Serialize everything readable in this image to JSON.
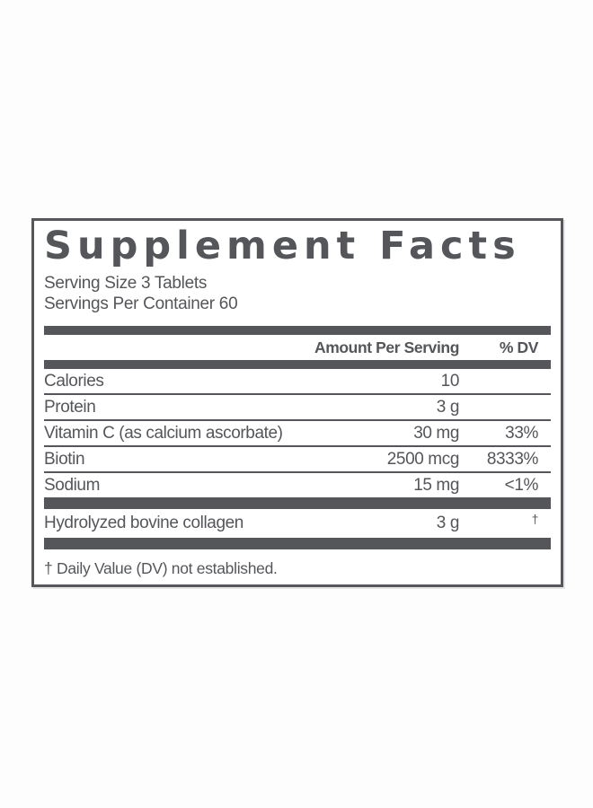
{
  "panel": {
    "title": "Supplement Facts",
    "serving_size": "Serving Size 3 Tablets",
    "servings_per_container": "Servings Per Container 60",
    "columns": {
      "amount": "Amount Per Serving",
      "dv": "% DV"
    },
    "rows": [
      {
        "name": "Calories",
        "amount": "10",
        "dv": ""
      },
      {
        "name": "Protein",
        "amount": "3 g",
        "dv": ""
      },
      {
        "name": "Vitamin C (as calcium ascorbate)",
        "amount": "30 mg",
        "dv": "33%"
      },
      {
        "name": "Biotin",
        "amount": "2500 mcg",
        "dv": "8333%"
      },
      {
        "name": "Sodium",
        "amount": "15 mg",
        "dv": "<1%"
      }
    ],
    "other_ingredient_row": {
      "name": "Hydrolyzed bovine collagen",
      "amount": "3 g",
      "dv": "†"
    },
    "footnote": "† Daily Value (DV) not established.",
    "colors": {
      "ink": "#54565a",
      "border": "#55575b",
      "background": "#ffffff"
    }
  }
}
